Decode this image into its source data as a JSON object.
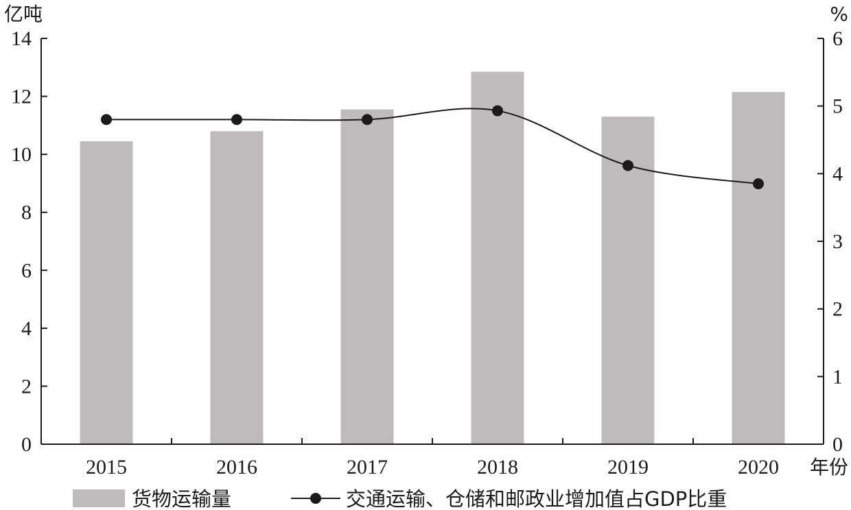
{
  "chart_data": {
    "type": "bar",
    "categories": [
      "2015",
      "2016",
      "2017",
      "2018",
      "2019",
      "2020"
    ],
    "series": [
      {
        "name": "货物运输量",
        "type": "bar",
        "axis": "left",
        "values": [
          10.45,
          10.8,
          11.55,
          12.85,
          11.3,
          12.15
        ]
      },
      {
        "name": "交通运输、仓储和邮政业增加值占GDP比重",
        "type": "line",
        "axis": "right",
        "values": [
          4.8,
          4.8,
          4.8,
          4.93,
          4.12,
          3.85
        ]
      }
    ],
    "left_axis": {
      "label": "亿吨",
      "ylim": [
        0,
        14
      ],
      "ticks": [
        "0",
        "2",
        "4",
        "6",
        "8",
        "10",
        "12",
        "14"
      ]
    },
    "right_axis": {
      "label": "%",
      "ylim": [
        0,
        6
      ],
      "ticks": [
        "0",
        "1",
        "2",
        "3",
        "4",
        "5",
        "6"
      ]
    },
    "xlabel": "年份",
    "grid": false,
    "legend_position": "bottom",
    "colors": {
      "bar": "#bdbbbc",
      "line": "#1a1a1a",
      "axis": "#1a1a1a"
    }
  }
}
